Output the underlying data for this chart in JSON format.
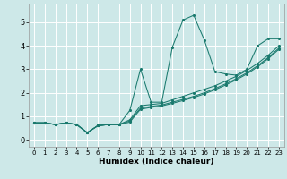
{
  "xlabel": "Humidex (Indice chaleur)",
  "ylabel": "",
  "background_color": "#cde8e8",
  "grid_color": "#ffffff",
  "line_color": "#1a7a6e",
  "xlim": [
    -0.5,
    23.5
  ],
  "ylim": [
    -0.3,
    5.8
  ],
  "xticks": [
    0,
    1,
    2,
    3,
    4,
    5,
    6,
    7,
    8,
    9,
    10,
    11,
    12,
    13,
    14,
    15,
    16,
    17,
    18,
    19,
    20,
    21,
    22,
    23
  ],
  "yticks": [
    0,
    1,
    2,
    3,
    4,
    5
  ],
  "series": [
    {
      "x": [
        0,
        1,
        2,
        3,
        4,
        5,
        6,
        7,
        8,
        9,
        10,
        11,
        12,
        13,
        14,
        15,
        16,
        17,
        18,
        19,
        20,
        21,
        22,
        23
      ],
      "y": [
        0.72,
        0.72,
        0.65,
        0.72,
        0.65,
        0.3,
        0.6,
        0.65,
        0.65,
        1.25,
        3.0,
        1.6,
        1.6,
        3.95,
        5.1,
        5.3,
        4.25,
        2.9,
        2.8,
        2.75,
        3.0,
        4.0,
        4.3,
        4.3
      ]
    },
    {
      "x": [
        0,
        1,
        2,
        3,
        4,
        5,
        6,
        7,
        8,
        9,
        10,
        11,
        12,
        13,
        14,
        15,
        16,
        17,
        18,
        19,
        20,
        21,
        22,
        23
      ],
      "y": [
        0.72,
        0.72,
        0.65,
        0.72,
        0.65,
        0.3,
        0.6,
        0.65,
        0.65,
        0.85,
        1.45,
        1.5,
        1.55,
        1.7,
        1.85,
        2.0,
        2.15,
        2.3,
        2.5,
        2.7,
        2.95,
        3.25,
        3.6,
        4.0
      ]
    },
    {
      "x": [
        0,
        1,
        2,
        3,
        4,
        5,
        6,
        7,
        8,
        9,
        10,
        11,
        12,
        13,
        14,
        15,
        16,
        17,
        18,
        19,
        20,
        21,
        22,
        23
      ],
      "y": [
        0.72,
        0.72,
        0.65,
        0.72,
        0.65,
        0.3,
        0.6,
        0.65,
        0.65,
        0.8,
        1.35,
        1.42,
        1.48,
        1.6,
        1.72,
        1.85,
        2.0,
        2.18,
        2.38,
        2.6,
        2.85,
        3.15,
        3.5,
        3.9
      ]
    },
    {
      "x": [
        0,
        1,
        2,
        3,
        4,
        5,
        6,
        7,
        8,
        9,
        10,
        11,
        12,
        13,
        14,
        15,
        16,
        17,
        18,
        19,
        20,
        21,
        22,
        23
      ],
      "y": [
        0.72,
        0.72,
        0.65,
        0.72,
        0.65,
        0.3,
        0.6,
        0.65,
        0.65,
        0.75,
        1.3,
        1.38,
        1.44,
        1.55,
        1.67,
        1.8,
        1.95,
        2.13,
        2.33,
        2.55,
        2.8,
        3.1,
        3.45,
        3.85
      ]
    }
  ]
}
